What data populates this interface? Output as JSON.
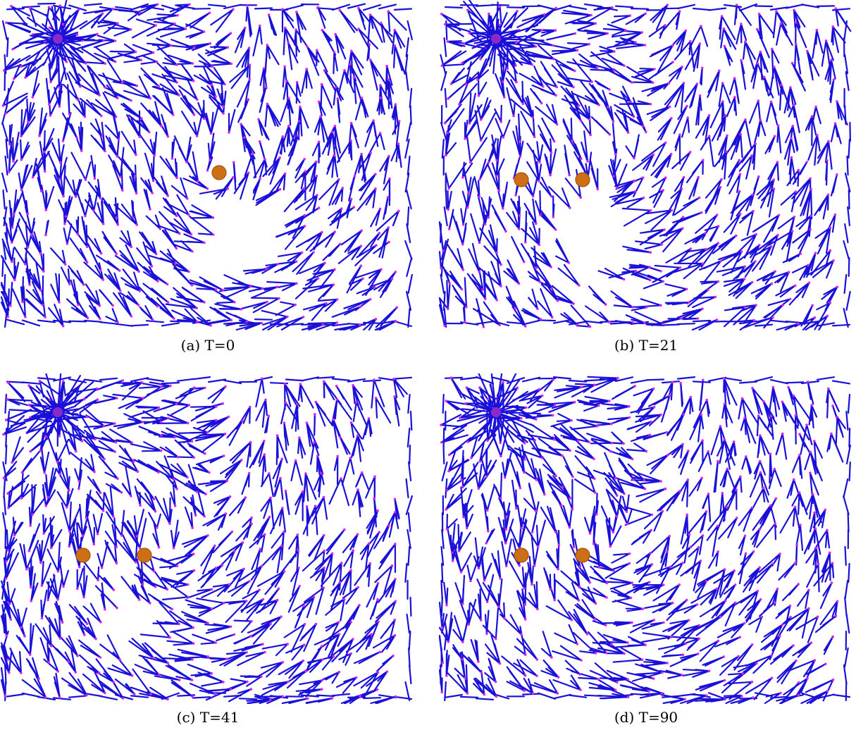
{
  "colors": {
    "edge": "#1a10d8",
    "node": "#e020f0",
    "hub": "#8a2ac8",
    "obstacle": "#cc6f16",
    "obstacle_stroke": "#a85510",
    "background": "#ffffff"
  },
  "panels": [
    {
      "caption": "(a) T=0",
      "time": 0,
      "obstacle_count": 1
    },
    {
      "caption": "(b) T=21",
      "time": 21,
      "obstacle_count": 2
    },
    {
      "caption": "(c) T=41",
      "time": 41,
      "obstacle_count": 2
    },
    {
      "caption": "(d) T=90",
      "time": 90,
      "obstacle_count": 2
    }
  ]
}
